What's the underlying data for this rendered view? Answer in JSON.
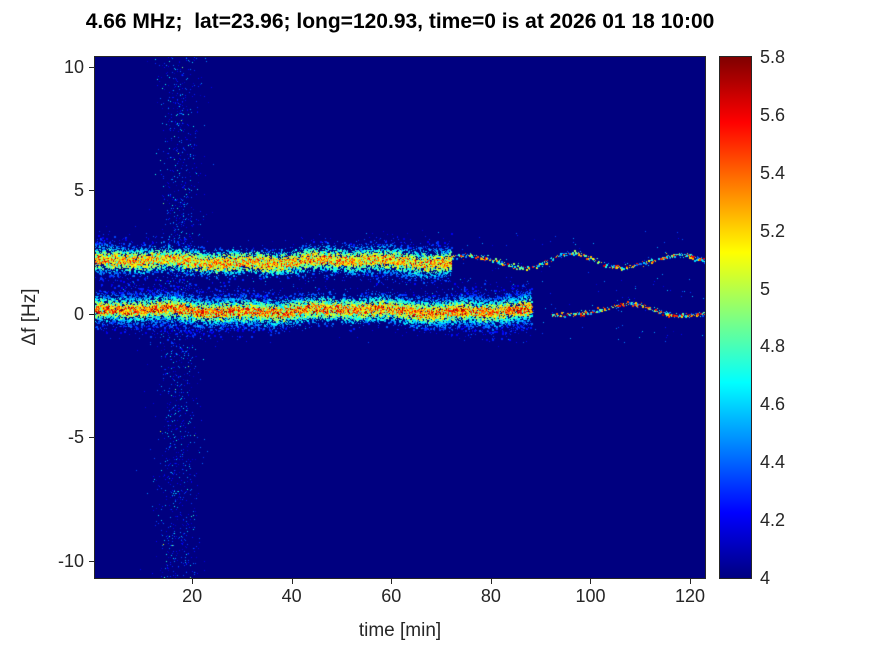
{
  "chart_data": {
    "type": "heatmap",
    "title": "4.66 MHz;  lat=23.96; long=120.93, time=0 is at 2026 01 18 10:00",
    "xlabel": "time [min]",
    "ylabel": "Δf [Hz]",
    "xlim": [
      0.5,
      123
    ],
    "ylim": [
      -10.7,
      10.4
    ],
    "x_ticks": [
      20,
      40,
      60,
      80,
      100,
      120
    ],
    "y_ticks": [
      -10,
      -5,
      0,
      5,
      10
    ],
    "grid": false,
    "colorbar": {
      "position": "right",
      "colormap": "jet",
      "min": 4,
      "max": 5.8,
      "ticks": [
        4,
        4.2,
        4.4,
        4.6,
        4.8,
        5,
        5.2,
        5.4,
        5.6,
        5.8
      ],
      "background_value": 4
    },
    "features": [
      {
        "kind": "vertical-noise",
        "name": "interference-burst",
        "t_center": 17.3,
        "t_sigma": 2.2,
        "count": 1500,
        "value_range": [
          4.12,
          4.8
        ]
      },
      {
        "kind": "sparse-noise",
        "name": "band-fringe-noise",
        "count": 320,
        "t_range": [
          0.5,
          123
        ],
        "bands_hz": [
          0.15,
          2.15
        ],
        "spread_hz": 1.3,
        "value_range": [
          4.12,
          4.6
        ]
      },
      {
        "kind": "speckle-band",
        "name": "primary-doppler-trace-0hz",
        "center_hz": 0.15,
        "sigma_hz": 0.34,
        "t_start": 0.5,
        "t_solid_end": 88,
        "t_end": 123,
        "density": 14,
        "core_boost": 0.8,
        "core_value": [
          5.15,
          5.8
        ],
        "sigma_phase": 0,
        "gap": [
          88.5,
          92
        ],
        "tail": {
          "dash_p": 0.75,
          "period": 26,
          "phase": 3.3,
          "amplitude": 0.22,
          "hot_p": 0.6,
          "hot": [
            5.15,
            5.75
          ],
          "cold": [
            4.35,
            5.0
          ]
        }
      },
      {
        "kind": "speckle-band",
        "name": "secondary-doppler-trace-2hz",
        "center_hz": 2.15,
        "sigma_hz": 0.3,
        "t_start": 0.5,
        "t_solid_end": 72,
        "t_end": 123,
        "density": 11,
        "core_boost": 0.55,
        "core_value": [
          4.95,
          5.65
        ],
        "sigma_phase": 2,
        "gap": null,
        "tail": {
          "dash_p": 0.7,
          "period": 21,
          "phase": 0.6,
          "amplitude": 0.27,
          "hot_p": 0.45,
          "hot": [
            5.1,
            5.7
          ],
          "cold": [
            4.35,
            5.0
          ]
        }
      }
    ]
  }
}
